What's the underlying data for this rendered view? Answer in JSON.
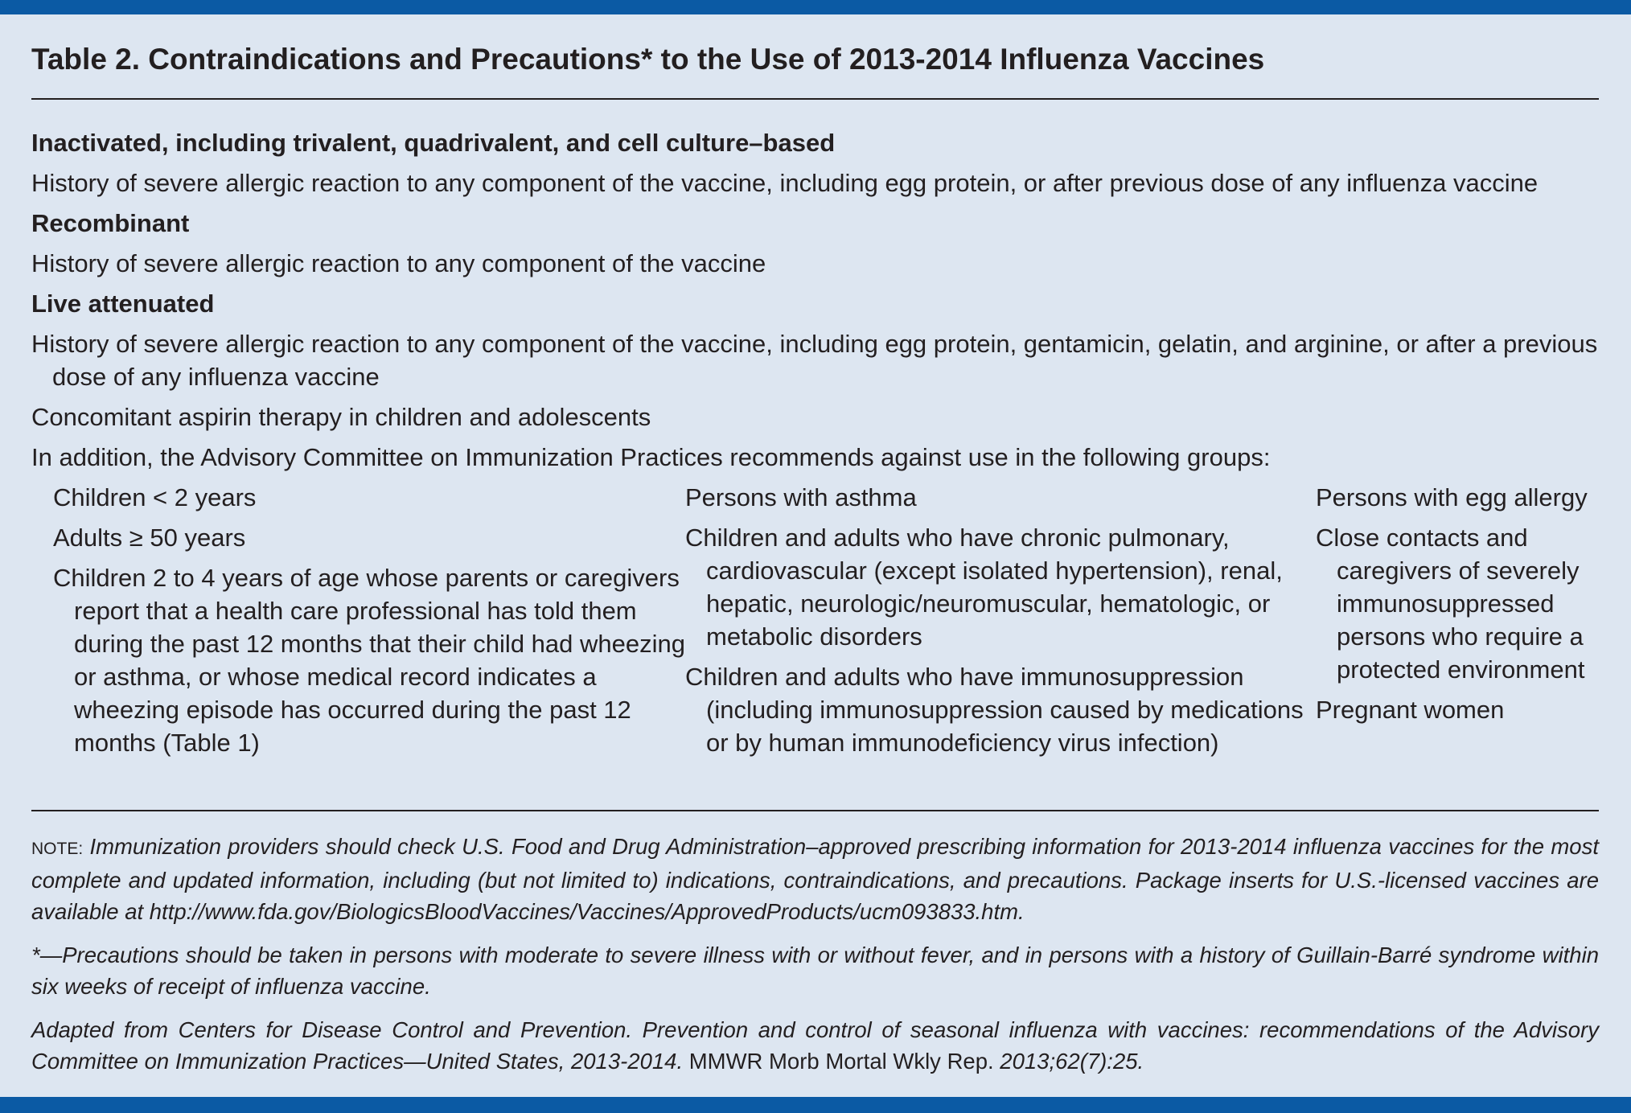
{
  "title": "Table 2. Contraindications and Precautions* to the Use of 2013-2014 Influenza Vaccines",
  "sections": [
    {
      "heading": "Inactivated, including trivalent, quadrivalent, and cell culture–based",
      "items": [
        "History of severe allergic reaction to any component of the vaccine, including egg protein, or after previous dose of any influenza vaccine"
      ]
    },
    {
      "heading": "Recombinant",
      "items": [
        "History of severe allergic reaction to any component of the vaccine"
      ]
    },
    {
      "heading": "Live attenuated",
      "items": [
        "History of severe allergic reaction to any component of the vaccine, including egg protein, gentamicin, gelatin, and arginine, or after a previous dose of any influenza vaccine",
        "Concomitant aspirin therapy in children and adolescents"
      ],
      "intro": "In addition, the Advisory Committee on Immunization Practices recommends against use in the following groups:",
      "columns": [
        [
          "Children < 2 years",
          "Adults ≥ 50 years",
          "Children 2 to 4 years of age whose parents or caregivers report that a health care professional has told them during the past 12 months that their child had wheezing or asthma, or whose medical record indicates a wheezing episode has occurred during the past 12 months (Table 1)"
        ],
        [
          "Persons with asthma",
          "Children and adults who have chronic pulmonary, cardiovascular (except isolated hypertension), renal, hepatic, neurologic/neuromuscular, hematologic, or metabolic disorders",
          "Children and adults who have immunosuppression (including immunosuppression caused by medications or by human immunodeficiency virus infection)"
        ],
        [
          "Persons with egg allergy",
          "Close contacts and caregivers of severely immunosuppressed persons who require a protected environment",
          "Pregnant women"
        ]
      ]
    }
  ],
  "notes": {
    "note_label": "NOTE:",
    "note": "Immunization providers should check U.S. Food and Drug Administration–approved prescribing information for 2013-2014 influenza vaccines for the most complete and updated information, including (but not limited to) indications, contraindications, and precautions. Package inserts for U.S.-licensed vaccines are available at http://www.fda.gov/BiologicsBloodVaccines/Vaccines/ApprovedProducts/ucm093833.htm.",
    "footnote": "*—Precautions should be taken in persons with moderate to severe illness with or without fever, and in persons with a history of Guillain-Barré syndrome within six weeks of receipt of influenza vaccine.",
    "source": [
      "Adapted from Centers for Disease Control and Prevention. Prevention and control of seasonal influenza with vaccines: recommendations of the Advisory Committee on Immunization Practices—United States, 2013-2014.",
      "MMWR Morb Mortal Wkly Rep.",
      "2013;62(7):25."
    ]
  }
}
